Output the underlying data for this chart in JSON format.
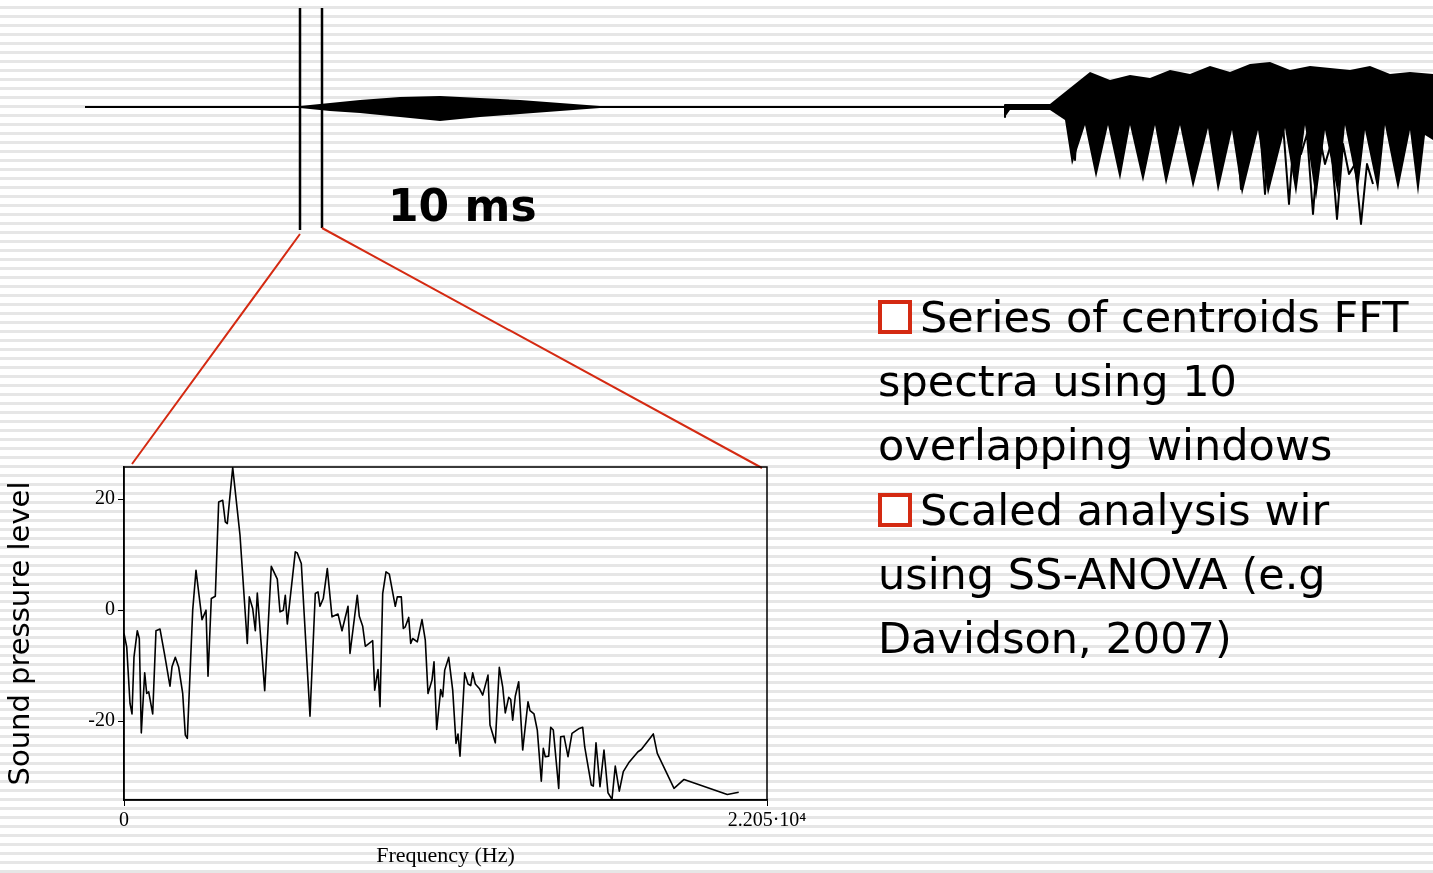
{
  "chart_data": {
    "type": "line",
    "xlabel": "Frequency (Hz)",
    "ylabel": "Sound pressure level",
    "xlim": [
      0,
      22050
    ],
    "xticks": [
      0,
      {
        "value": 22050,
        "label": "2.205·10⁴"
      }
    ],
    "ylim": [
      -34.2,
      25.8
    ],
    "yticks": [
      -20,
      0,
      20
    ],
    "grid": false,
    "legend": false,
    "marker": "none",
    "line_style": "solid",
    "annotations": [
      "10 ms",
      "Series of centroids FFT spectra using 10 overlapping windows",
      "Scaled analysis wir using SS-ANOVA (e.g Davidson, 2007)"
    ],
    "series": [
      {
        "color": "#000000",
        "x": [
          0,
          93,
          206,
          274,
          343,
          456,
          525,
          593,
          710,
          778,
          847,
          984,
          1097,
          1235,
          1396,
          1577,
          1646,
          1759,
          1876,
          2013,
          2102,
          2171,
          2356,
          2469,
          2675,
          2812,
          2881,
          2994,
          3131,
          3247,
          3385,
          3474,
          3542,
          3728,
          3978,
          4228,
          4297,
          4413,
          4503,
          4571,
          4825,
          5051,
          5168,
          5257,
          5350,
          5463,
          5532,
          5600,
          5874,
          5943,
          6080,
          6378,
          6560,
          6653,
          6721,
          6834,
          6972,
          7133,
          7339,
          7476,
          7682,
          7750,
          8000,
          8069,
          8186,
          8275,
          8528,
          8597,
          8710,
          8779,
          8871,
          8985,
          9098,
          9303,
          9372,
          9509,
          9578,
          9646,
          9763,
          9832,
          9900,
          10058,
          10219,
          10332,
          10425,
          10562,
          10631,
          10723,
          10860,
          10929,
          10998,
          11135,
          11272,
          11385,
          11454,
          11522,
          11683,
          11797,
          11889,
          11958,
          12047,
          12184,
          12301,
          12482,
          12551,
          12733,
          12870,
          12986,
          13075,
          13192,
          13261,
          13329,
          13418,
          13535,
          13672,
          13854,
          13923,
          14060,
          14173,
          14310,
          14379,
          14447,
          14564,
          14633,
          14722,
          14907,
          14975,
          15089,
          15157,
          15226,
          15363,
          15476,
          15613,
          15730,
          15798,
          16025,
          16093,
          16186,
          16323,
          16460,
          16597,
          16734,
          16847,
          16985,
          17122,
          17307,
          17489,
          17626,
          17739,
          17924,
          18151,
          18288,
          18405,
          18724,
          18861,
          18954,
          19205,
          19387,
          20552,
          20689,
          20782,
          20988,
          21080
        ],
        "values": [
          -4.2,
          -6.6,
          -16.8,
          -18.7,
          -8.4,
          -3.7,
          -5.1,
          -22.1,
          -11.3,
          -15.0,
          -14.7,
          -18.7,
          -3.7,
          -3.4,
          -8.1,
          -13.7,
          -10.2,
          -8.5,
          -10.3,
          -15.0,
          -22.5,
          -23.1,
          0,
          7.2,
          -1.7,
          0,
          -11.9,
          2.1,
          2.5,
          19.5,
          19.8,
          15.9,
          15.6,
          25.7,
          13.5,
          -6.0,
          2.4,
          0.3,
          -3.7,
          3.1,
          -14.5,
          7.9,
          6.6,
          5.6,
          -0.3,
          0,
          2.7,
          -2.5,
          10.5,
          10.3,
          8.4,
          -19.1,
          3.0,
          3.3,
          0.7,
          2.1,
          7.5,
          -1.2,
          -0.7,
          -3.7,
          0.7,
          -7.8,
          2.7,
          -1.1,
          -2.9,
          -6.5,
          -5.5,
          -14.4,
          -10.7,
          -17.4,
          3.0,
          6.9,
          6.5,
          0.7,
          2.4,
          2.4,
          -3.3,
          -3.0,
          -1.3,
          -6.0,
          -5.1,
          -5.7,
          -1.7,
          -5.4,
          -15.0,
          -12.6,
          -9.3,
          -21.5,
          -14.3,
          -15.6,
          -10.8,
          -8.5,
          -14.4,
          -24.0,
          -22.3,
          -26.3,
          -11.3,
          -13.3,
          -13.6,
          -11.3,
          -13.3,
          -14.1,
          -15.3,
          -11.7,
          -20.7,
          -23.9,
          -10.3,
          -13.8,
          -18.5,
          -15.7,
          -16.1,
          -19.8,
          -15.5,
          -12.9,
          -25.2,
          -16.5,
          -18.1,
          -18.7,
          -21.6,
          -30.8,
          -24.9,
          -26.4,
          -26.3,
          -21.1,
          -21.6,
          -32.1,
          -22.8,
          -22.7,
          null,
          -26.4,
          -22.2,
          null,
          -21.3,
          -21.1,
          -24.6,
          -31.5,
          -31.7,
          -23.9,
          -31.8,
          -25.2,
          -32.9,
          -34.1,
          -28.1,
          -32.6,
          -29.1,
          -27.5,
          null,
          -25.5,
          -25.1,
          null,
          -22.3,
          -25.8,
          null,
          null,
          -32.1,
          null,
          -30.5,
          null,
          null,
          -33.2,
          null,
          null,
          -32.8
        ]
      }
    ]
  }
}
